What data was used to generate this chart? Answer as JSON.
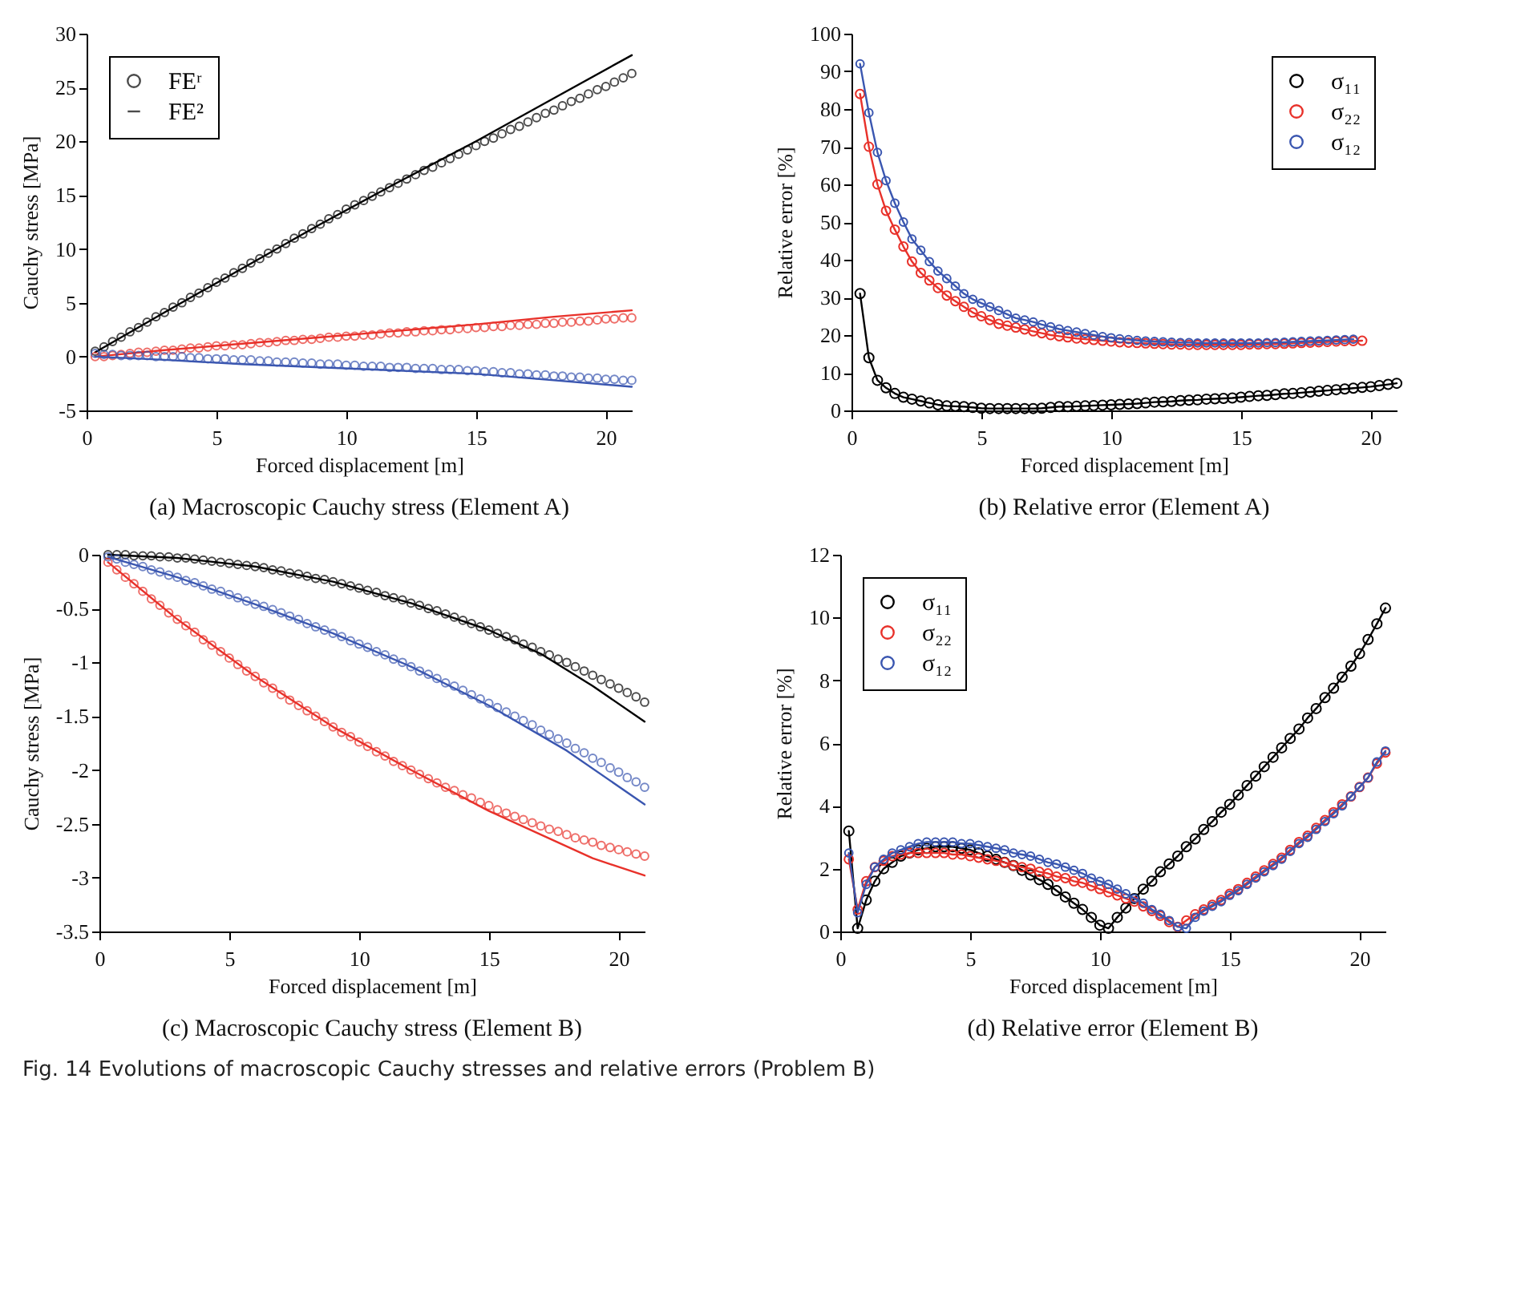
{
  "chart_data": [
    {
      "type": "scatter",
      "marker": "circle",
      "title": "(a) Macroscopic Cauchy stress (Element A)",
      "xlabel": "Forced displacement [m]",
      "ylabel": "Cauchy stress [MPa]",
      "xlim": [
        0,
        21
      ],
      "xticks": [
        0,
        5,
        10,
        15,
        20
      ],
      "ylim": [
        -5,
        30
      ],
      "yticks": [
        -5,
        0,
        5,
        10,
        15,
        20,
        25,
        30
      ],
      "legend": "top left",
      "x": [
        0.33,
        0.67,
        1,
        1.33,
        1.67,
        2,
        2.33,
        2.67,
        3,
        3.33,
        3.67,
        4,
        4.33,
        4.67,
        5,
        5.33,
        5.67,
        6,
        6.33,
        6.67,
        7,
        7.33,
        7.67,
        8,
        8.33,
        8.67,
        9,
        9.33,
        9.67,
        10,
        10.33,
        10.67,
        11,
        11.33,
        11.67,
        12,
        12.33,
        12.67,
        13,
        13.33,
        13.67,
        14,
        14.33,
        14.67,
        15,
        15.33,
        15.67,
        16,
        16.33,
        16.67,
        17,
        17.33,
        17.67,
        18,
        18.33,
        18.67,
        19,
        19.33,
        19.67,
        20,
        20.33,
        20.67,
        21
      ],
      "series": [
        {
          "name": "FEʳ",
          "color": "#000000",
          "values": [
            0.5,
            0.9,
            1.4,
            1.8,
            2.3,
            2.7,
            3.2,
            3.7,
            4.1,
            4.6,
            5.0,
            5.5,
            5.9,
            6.4,
            6.9,
            7.3,
            7.8,
            8.2,
            8.7,
            9.1,
            9.6,
            10.0,
            10.5,
            11.0,
            11.4,
            11.9,
            12.3,
            12.8,
            13.2,
            13.7,
            14.1,
            14.5,
            14.9,
            15.3,
            15.7,
            16.1,
            16.5,
            16.9,
            17.3,
            17.6,
            18.0,
            18.4,
            18.8,
            19.2,
            19.6,
            20.0,
            20.3,
            20.7,
            21.1,
            21.4,
            21.8,
            22.2,
            22.6,
            22.9,
            23.3,
            23.7,
            24.0,
            24.4,
            24.8,
            25.1,
            25.5,
            25.9,
            26.3
          ]
        },
        {
          "name": "FE²",
          "type": "line",
          "marker": "none",
          "color": "#000000",
          "x": [
            0.33,
            3,
            6,
            9,
            12,
            15,
            18,
            21
          ],
          "values": [
            0.4,
            4.1,
            8.2,
            12.3,
            16.2,
            20.0,
            24.0,
            28.0
          ]
        },
        {
          "color": "#e8312a",
          "values": [
            0.0,
            0.0,
            0.1,
            0.2,
            0.3,
            0.4,
            0.4,
            0.5,
            0.6,
            0.6,
            0.7,
            0.8,
            0.8,
            0.9,
            1.0,
            1.0,
            1.1,
            1.1,
            1.2,
            1.3,
            1.3,
            1.4,
            1.5,
            1.5,
            1.6,
            1.6,
            1.7,
            1.8,
            1.8,
            1.9,
            1.9,
            2.0,
            2.0,
            2.1,
            2.2,
            2.2,
            2.3,
            2.3,
            2.4,
            2.4,
            2.5,
            2.5,
            2.6,
            2.6,
            2.7,
            2.7,
            2.8,
            2.8,
            2.9,
            2.9,
            3.0,
            3.0,
            3.1,
            3.1,
            3.2,
            3.2,
            3.3,
            3.3,
            3.4,
            3.5,
            3.5,
            3.6,
            3.6
          ]
        },
        {
          "type": "line",
          "marker": "none",
          "color": "#e8312a",
          "x": [
            0.33,
            3,
            6,
            9,
            12,
            15,
            18,
            21
          ],
          "values": [
            0,
            0.6,
            1.2,
            1.8,
            2.4,
            3.0,
            3.7,
            4.3
          ]
        },
        {
          "color": "#3a56b0",
          "values": [
            0.3,
            0.2,
            0.2,
            0.1,
            0.1,
            0.1,
            0.1,
            0.0,
            0.0,
            0.0,
            0.0,
            -0.1,
            -0.1,
            -0.2,
            -0.2,
            -0.2,
            -0.3,
            -0.3,
            -0.3,
            -0.4,
            -0.4,
            -0.5,
            -0.5,
            -0.5,
            -0.6,
            -0.6,
            -0.7,
            -0.7,
            -0.7,
            -0.8,
            -0.8,
            -0.9,
            -0.9,
            -0.9,
            -1.0,
            -1.0,
            -1.0,
            -1.1,
            -1.1,
            -1.1,
            -1.2,
            -1.2,
            -1.2,
            -1.3,
            -1.3,
            -1.4,
            -1.4,
            -1.5,
            -1.5,
            -1.6,
            -1.6,
            -1.7,
            -1.7,
            -1.8,
            -1.8,
            -1.9,
            -1.9,
            -2.0,
            -2.0,
            -2.1,
            -2.1,
            -2.2,
            -2.2
          ]
        },
        {
          "type": "line",
          "marker": "none",
          "color": "#3a56b0",
          "x": [
            0.33,
            3,
            6,
            9,
            12,
            15,
            18,
            21
          ],
          "values": [
            0,
            -0.3,
            -0.7,
            -1.0,
            -1.3,
            -1.6,
            -2.2,
            -2.8
          ]
        }
      ]
    },
    {
      "type": "line",
      "marker": "circle",
      "title": "(b) Relative error (Element A)",
      "xlabel": "Forced displacement [m]",
      "ylabel": "Relative error [%]",
      "xlim": [
        0,
        21
      ],
      "xticks": [
        0,
        5,
        10,
        15,
        20
      ],
      "ylim": [
        0,
        100
      ],
      "yticks": [
        0,
        10,
        20,
        30,
        40,
        50,
        60,
        70,
        80,
        90,
        100
      ],
      "legend": "top right",
      "x": [
        0.33,
        0.67,
        1,
        1.33,
        1.67,
        2,
        2.33,
        2.67,
        3,
        3.33,
        3.67,
        4,
        4.33,
        4.67,
        5,
        5.33,
        5.67,
        6,
        6.33,
        6.67,
        7,
        7.33,
        7.67,
        8,
        8.33,
        8.67,
        9,
        9.33,
        9.67,
        10,
        10.33,
        10.67,
        11,
        11.33,
        11.67,
        12,
        12.33,
        12.67,
        13,
        13.33,
        13.67,
        14,
        14.33,
        14.67,
        15,
        15.33,
        15.67,
        16,
        16.33,
        16.67,
        17,
        17.33,
        17.67,
        18,
        18.33,
        18.67,
        19,
        19.33,
        19.67,
        20,
        20.33,
        20.67,
        21
      ],
      "series": [
        {
          "name": "σ₁₁",
          "color": "#000000",
          "values": [
            31,
            14,
            8,
            6,
            4.5,
            3.5,
            3,
            2.5,
            2,
            1.5,
            1.2,
            1.1,
            1,
            0.8,
            0.6,
            0.5,
            0.5,
            0.5,
            0.5,
            0.5,
            0.5,
            0.6,
            0.8,
            1,
            1,
            1.1,
            1.2,
            1.3,
            1.4,
            1.5,
            1.6,
            1.7,
            1.8,
            2,
            2.2,
            2.3,
            2.4,
            2.6,
            2.7,
            2.8,
            3,
            3.1,
            3.2,
            3.3,
            3.5,
            3.7,
            3.9,
            4,
            4.2,
            4.4,
            4.5,
            4.7,
            4.9,
            5.1,
            5.3,
            5.5,
            5.7,
            5.9,
            6.1,
            6.3,
            6.6,
            6.9,
            7.2
          ]
        },
        {
          "name": "σ₂₂",
          "color": "#e8312a",
          "values": [
            84,
            70,
            60,
            53,
            48,
            43.5,
            39.5,
            36.5,
            34.5,
            32.5,
            30.5,
            29,
            27.5,
            26,
            25,
            24,
            23,
            22.5,
            22,
            21.5,
            21,
            20.5,
            20,
            19.7,
            19.4,
            19.1,
            18.9,
            18.7,
            18.5,
            18.3,
            18.1,
            18,
            17.9,
            17.8,
            17.7,
            17.6,
            17.5,
            17.5,
            17.4,
            17.4,
            17.4,
            17.4,
            17.4,
            17.4,
            17.4,
            17.5,
            17.5,
            17.6,
            17.6,
            17.7,
            17.8,
            17.9,
            18,
            18.1,
            18.2,
            18.3,
            18.4,
            18.4,
            18.5,
            null,
            null,
            null,
            null
          ]
        },
        {
          "name": "σ₁₂",
          "color": "#3a56b0",
          "values": [
            92,
            79,
            68.5,
            61,
            55,
            50,
            45.5,
            42.5,
            39.5,
            37,
            35,
            33,
            31,
            29.5,
            28.5,
            27.5,
            26.5,
            25.5,
            24.5,
            24,
            23.5,
            22.8,
            22.2,
            21.6,
            21.2,
            20.8,
            20.4,
            20,
            19.6,
            19.3,
            19,
            18.8,
            18.6,
            18.4,
            18.3,
            18.2,
            18.1,
            18,
            18,
            17.9,
            17.9,
            17.9,
            17.9,
            17.9,
            17.9,
            17.9,
            17.9,
            18,
            18,
            18.1,
            18.2,
            18.3,
            18.4,
            18.5,
            18.6,
            18.7,
            18.8,
            18.9,
            null,
            null,
            null,
            null,
            null
          ]
        }
      ]
    },
    {
      "type": "scatter",
      "marker": "circle",
      "title": "(c) Macroscopic Cauchy stress (Element B)",
      "xlabel": "Forced displacement [m]",
      "ylabel": "Cauchy stress [MPa]",
      "xlim": [
        0,
        21
      ],
      "xticks": [
        0,
        5,
        10,
        15,
        20
      ],
      "ylim": [
        -3.5,
        0
      ],
      "yticks": [
        -3.5,
        -3,
        -2.5,
        -2,
        -1.5,
        -1,
        -0.5,
        0
      ],
      "x": [
        0.33,
        0.67,
        1,
        1.33,
        1.67,
        2,
        2.33,
        2.67,
        3,
        3.33,
        3.67,
        4,
        4.33,
        4.67,
        5,
        5.33,
        5.67,
        6,
        6.33,
        6.67,
        7,
        7.33,
        7.67,
        8,
        8.33,
        8.67,
        9,
        9.33,
        9.67,
        10,
        10.33,
        10.67,
        11,
        11.33,
        11.67,
        12,
        12.33,
        12.67,
        13,
        13.33,
        13.67,
        14,
        14.33,
        14.67,
        15,
        15.33,
        15.67,
        16,
        16.33,
        16.67,
        17,
        17.33,
        17.67,
        18,
        18.33,
        18.67,
        19,
        19.33,
        19.67,
        20,
        20.33,
        20.67,
        21
      ],
      "series": [
        {
          "color": "#000000",
          "values": [
            0,
            0,
            0,
            -0.01,
            -0.01,
            -0.01,
            -0.02,
            -0.02,
            -0.03,
            -0.03,
            -0.04,
            -0.05,
            -0.06,
            -0.07,
            -0.08,
            -0.09,
            -0.1,
            -0.11,
            -0.12,
            -0.14,
            -0.15,
            -0.17,
            -0.18,
            -0.2,
            -0.22,
            -0.23,
            -0.25,
            -0.27,
            -0.29,
            -0.31,
            -0.33,
            -0.35,
            -0.38,
            -0.4,
            -0.42,
            -0.45,
            -0.47,
            -0.5,
            -0.52,
            -0.55,
            -0.58,
            -0.61,
            -0.64,
            -0.67,
            -0.7,
            -0.73,
            -0.76,
            -0.79,
            -0.83,
            -0.86,
            -0.9,
            -0.93,
            -0.97,
            -1,
            -1.04,
            -1.08,
            -1.12,
            -1.16,
            -1.2,
            -1.24,
            -1.28,
            -1.32,
            -1.37
          ]
        },
        {
          "type": "line",
          "marker": "none",
          "color": "#000000",
          "x": [
            0.33,
            3,
            6,
            9,
            12,
            15,
            17,
            19,
            21
          ],
          "values": [
            0,
            -0.03,
            -0.11,
            -0.25,
            -0.45,
            -0.7,
            -0.92,
            -1.22,
            -1.55
          ]
        },
        {
          "color": "#e8312a",
          "values": [
            -0.07,
            -0.14,
            -0.21,
            -0.27,
            -0.34,
            -0.41,
            -0.47,
            -0.54,
            -0.6,
            -0.66,
            -0.72,
            -0.79,
            -0.84,
            -0.9,
            -0.96,
            -1.02,
            -1.08,
            -1.13,
            -1.19,
            -1.24,
            -1.3,
            -1.35,
            -1.4,
            -1.45,
            -1.5,
            -1.55,
            -1.6,
            -1.65,
            -1.69,
            -1.74,
            -1.78,
            -1.83,
            -1.87,
            -1.92,
            -1.96,
            -2,
            -2.04,
            -2.08,
            -2.12,
            -2.16,
            -2.19,
            -2.23,
            -2.26,
            -2.3,
            -2.33,
            -2.37,
            -2.4,
            -2.43,
            -2.46,
            -2.49,
            -2.52,
            -2.55,
            -2.57,
            -2.6,
            -2.63,
            -2.65,
            -2.67,
            -2.7,
            -2.72,
            -2.74,
            -2.76,
            -2.78,
            -2.8
          ]
        },
        {
          "type": "line",
          "marker": "none",
          "color": "#e8312a",
          "x": [
            0.33,
            3,
            6,
            9,
            12,
            15,
            17,
            19,
            21
          ],
          "values": [
            -0.07,
            -0.6,
            -1.13,
            -1.6,
            -2,
            -2.38,
            -2.6,
            -2.82,
            -2.98
          ]
        },
        {
          "color": "#3a56b0",
          "values": [
            -0.02,
            -0.04,
            -0.07,
            -0.09,
            -0.11,
            -0.14,
            -0.16,
            -0.19,
            -0.21,
            -0.24,
            -0.26,
            -0.29,
            -0.32,
            -0.34,
            -0.37,
            -0.4,
            -0.43,
            -0.46,
            -0.48,
            -0.51,
            -0.54,
            -0.57,
            -0.6,
            -0.64,
            -0.67,
            -0.7,
            -0.73,
            -0.76,
            -0.8,
            -0.83,
            -0.86,
            -0.9,
            -0.93,
            -0.97,
            -1,
            -1.04,
            -1.08,
            -1.11,
            -1.15,
            -1.19,
            -1.22,
            -1.26,
            -1.3,
            -1.34,
            -1.38,
            -1.42,
            -1.46,
            -1.5,
            -1.54,
            -1.58,
            -1.63,
            -1.67,
            -1.71,
            -1.75,
            -1.8,
            -1.84,
            -1.89,
            -1.93,
            -1.98,
            -2.02,
            -2.07,
            -2.11,
            -2.16
          ]
        },
        {
          "type": "line",
          "marker": "none",
          "color": "#3a56b0",
          "x": [
            0.33,
            3,
            6,
            9,
            12,
            15,
            18,
            21
          ],
          "values": [
            -0.02,
            -0.21,
            -0.46,
            -0.73,
            -1.04,
            -1.4,
            -1.82,
            -2.32
          ]
        }
      ]
    },
    {
      "type": "line",
      "marker": "circle",
      "title": "(d) Relative error (Element B)",
      "xlabel": "Forced displacement [m]",
      "ylabel": "Relative error [%]",
      "xlim": [
        0,
        21
      ],
      "xticks": [
        0,
        5,
        10,
        15,
        20
      ],
      "ylim": [
        0,
        12
      ],
      "yticks": [
        0,
        2,
        4,
        6,
        8,
        10,
        12
      ],
      "legend": "top left",
      "annotations": [
        "Fig. 14 Evolutions of macroscopic Cauchy stresses and relative errors (Problem B)"
      ],
      "x": [
        0.33,
        0.67,
        1,
        1.33,
        1.67,
        2,
        2.33,
        2.67,
        3,
        3.33,
        3.67,
        4,
        4.33,
        4.67,
        5,
        5.33,
        5.67,
        6,
        6.33,
        6.67,
        7,
        7.33,
        7.67,
        8,
        8.33,
        8.67,
        9,
        9.33,
        9.67,
        10,
        10.33,
        10.67,
        11,
        11.33,
        11.67,
        12,
        12.33,
        12.67,
        13,
        13.33,
        13.67,
        14,
        14.33,
        14.67,
        15,
        15.33,
        15.67,
        16,
        16.33,
        16.67,
        17,
        17.33,
        17.67,
        18,
        18.33,
        18.67,
        19,
        19.33,
        19.67,
        20,
        20.33,
        20.67,
        21
      ],
      "series": [
        {
          "name": "σ₁₁",
          "color": "#000000",
          "values": [
            3.2,
            0.1,
            1,
            1.6,
            2,
            2.2,
            2.4,
            2.5,
            2.6,
            2.65,
            2.7,
            2.7,
            2.7,
            2.65,
            2.6,
            2.5,
            2.4,
            2.3,
            2.2,
            2.1,
            1.95,
            1.8,
            1.65,
            1.5,
            1.3,
            1.1,
            0.9,
            0.7,
            0.45,
            0.2,
            0.1,
            0.45,
            0.75,
            1.05,
            1.35,
            1.6,
            1.9,
            2.15,
            2.4,
            2.7,
            2.95,
            3.25,
            3.5,
            3.8,
            4.05,
            4.35,
            4.65,
            4.95,
            5.25,
            5.55,
            5.85,
            6.15,
            6.45,
            6.8,
            7.1,
            7.45,
            7.75,
            8.1,
            8.45,
            8.85,
            9.3,
            9.8,
            10.3
          ]
        },
        {
          "name": "σ₂₂",
          "color": "#e8312a",
          "values": [
            2.3,
            0.7,
            1.6,
            2.05,
            2.25,
            2.4,
            2.45,
            2.5,
            2.5,
            2.5,
            2.5,
            2.5,
            2.45,
            2.45,
            2.4,
            2.35,
            2.3,
            2.25,
            2.2,
            2.1,
            2.05,
            2,
            1.9,
            1.85,
            1.75,
            1.7,
            1.6,
            1.55,
            1.45,
            1.35,
            1.25,
            1.15,
            1.05,
            0.95,
            0.8,
            0.65,
            0.5,
            0.3,
            0.15,
            0.35,
            0.55,
            0.7,
            0.85,
            1,
            1.2,
            1.35,
            1.55,
            1.75,
            1.95,
            2.15,
            2.35,
            2.6,
            2.85,
            3.05,
            3.3,
            3.55,
            3.8,
            4.05,
            4.3,
            4.6,
            4.9,
            5.35,
            5.7
          ]
        },
        {
          "name": "σ₁₂",
          "color": "#3a56b0",
          "values": [
            2.5,
            0.6,
            1.5,
            2.05,
            2.3,
            2.5,
            2.6,
            2.7,
            2.8,
            2.85,
            2.85,
            2.85,
            2.85,
            2.8,
            2.8,
            2.75,
            2.7,
            2.65,
            2.6,
            2.5,
            2.45,
            2.4,
            2.3,
            2.2,
            2.15,
            2.05,
            1.95,
            1.85,
            1.7,
            1.6,
            1.5,
            1.35,
            1.2,
            1.05,
            0.9,
            0.7,
            0.55,
            0.35,
            0.15,
            0.1,
            0.45,
            0.65,
            0.8,
            0.95,
            1.15,
            1.3,
            1.5,
            1.7,
            1.9,
            2.1,
            2.3,
            2.55,
            2.8,
            3,
            3.25,
            3.5,
            3.75,
            4,
            4.3,
            4.6,
            4.9,
            5.4,
            5.75
          ]
        }
      ]
    }
  ]
}
